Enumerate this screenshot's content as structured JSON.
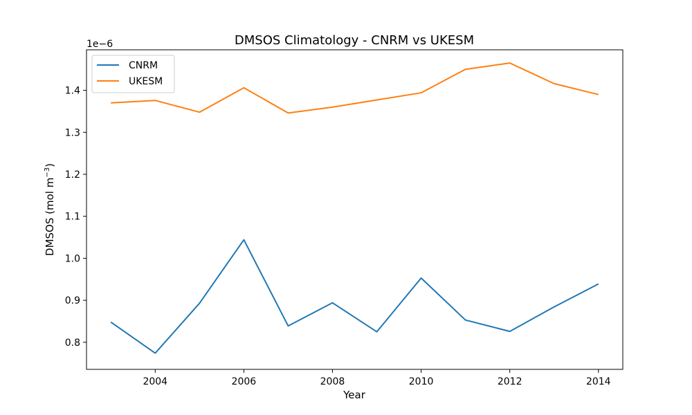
{
  "chart_data": {
    "type": "line",
    "title": "DMSOS Climatology - CNRM vs UKESM",
    "xlabel": "Year",
    "ylabel": "DMSOS (mol m",
    "ylabel_sup": "−3",
    "ylabel_close": ")",
    "offset_label": "1e−6",
    "x": [
      2003,
      2004,
      2005,
      2006,
      2007,
      2008,
      2009,
      2010,
      2011,
      2012,
      2013,
      2014
    ],
    "xticks": [
      2004,
      2006,
      2008,
      2010,
      2012,
      2014
    ],
    "yticks": [
      0.8,
      0.9,
      1.0,
      1.1,
      1.2,
      1.3,
      1.4
    ],
    "ytick_labels": [
      "0.8",
      "0.9",
      "1.0",
      "1.1",
      "1.2",
      "1.3",
      "1.4"
    ],
    "xlim": [
      2002.45,
      2014.55
    ],
    "ylim": [
      0.7355,
      1.4965
    ],
    "grid": false,
    "legend_position": "top-left",
    "series": [
      {
        "name": "CNRM",
        "color": "#1f77b4",
        "values": [
          0.848,
          0.774,
          0.893,
          1.044,
          0.839,
          0.894,
          0.825,
          0.953,
          0.853,
          0.826,
          0.884,
          0.939
        ]
      },
      {
        "name": "UKESM",
        "color": "#ff7f0e",
        "values": [
          1.37,
          1.376,
          1.348,
          1.406,
          1.346,
          1.36,
          1.377,
          1.394,
          1.45,
          1.465,
          1.416,
          1.39
        ]
      }
    ]
  }
}
